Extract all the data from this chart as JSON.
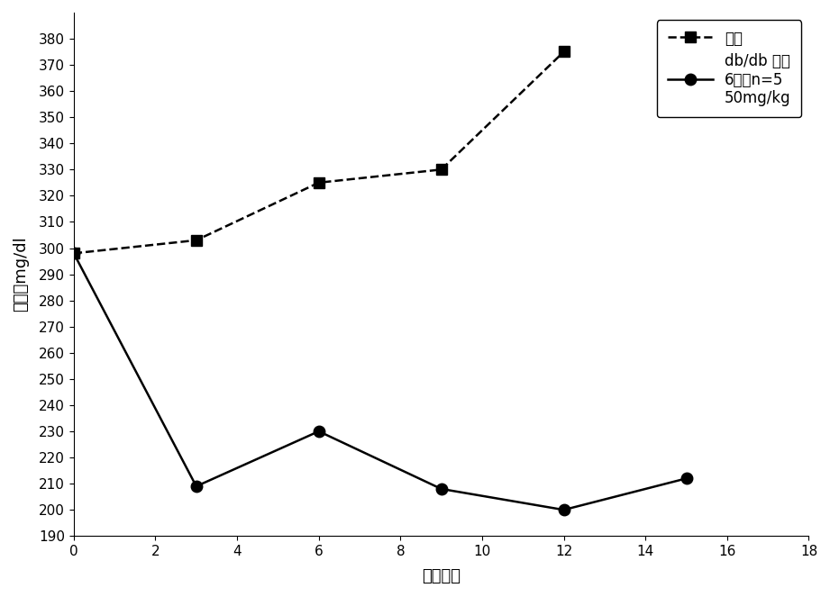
{
  "series1_label": "载体",
  "series1_x": [
    0,
    3,
    6,
    9,
    12
  ],
  "series1_y": [
    298,
    303,
    325,
    330,
    375
  ],
  "series1_marker": "s",
  "series1_color": "#000000",
  "series1_linestyle": "--",
  "series2_label": "db/db 雄性",
  "series2_extra": "6周，n=5\n50mg/kg",
  "series2_x": [
    0,
    3,
    6,
    9,
    12,
    15
  ],
  "series2_y": [
    298,
    209,
    230,
    208,
    200,
    212
  ],
  "series2_marker": "o",
  "series2_color": "#000000",
  "series2_linestyle": "-",
  "xlabel": "治疗天数",
  "ylabel": "血糖，mg/dl",
  "xlim": [
    0,
    18
  ],
  "ylim": [
    190,
    390
  ],
  "xticks": [
    0,
    2,
    4,
    6,
    8,
    10,
    12,
    14,
    16,
    18
  ],
  "yticks": [
    190,
    200,
    210,
    220,
    230,
    240,
    250,
    260,
    270,
    280,
    290,
    300,
    310,
    320,
    330,
    340,
    350,
    360,
    370,
    380
  ],
  "background_color": "#ffffff"
}
